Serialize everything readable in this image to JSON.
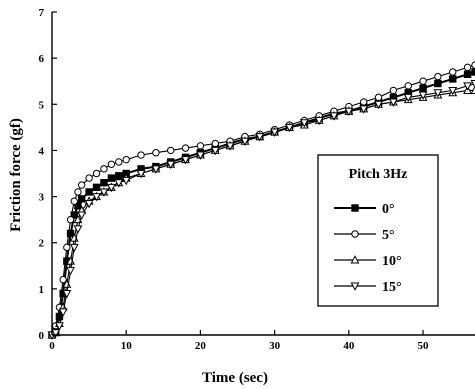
{
  "chart_data": {
    "type": "line",
    "title": "",
    "xlabel": "Time (sec)",
    "ylabel": "Friction force (gf)",
    "xlim": [
      0,
      57
    ],
    "ylim": [
      0,
      7
    ],
    "xticks": [
      0,
      10,
      20,
      30,
      40,
      50
    ],
    "yticks": [
      0,
      1,
      2,
      3,
      4,
      5,
      6,
      7
    ],
    "grid": false,
    "legend": {
      "title": "Pitch 3Hz",
      "placement": "center-right"
    },
    "series": [
      {
        "name": "0°",
        "marker": "filled-square",
        "x": [
          0,
          0.5,
          1,
          1.5,
          2,
          2.5,
          3,
          3.5,
          4,
          5,
          6,
          7,
          8,
          9,
          10,
          12,
          14,
          16,
          18,
          20,
          22,
          24,
          26,
          28,
          30,
          32,
          34,
          36,
          38,
          40,
          42,
          44,
          46,
          48,
          50,
          52,
          54,
          56,
          57
        ],
        "y": [
          0,
          0.1,
          0.4,
          0.9,
          1.6,
          2.2,
          2.6,
          2.8,
          2.95,
          3.1,
          3.2,
          3.3,
          3.4,
          3.45,
          3.5,
          3.6,
          3.65,
          3.75,
          3.85,
          3.95,
          4.05,
          4.15,
          4.25,
          4.3,
          4.4,
          4.5,
          4.6,
          4.7,
          4.8,
          4.85,
          4.95,
          5.05,
          5.15,
          5.25,
          5.35,
          5.45,
          5.55,
          5.65,
          5.7
        ]
      },
      {
        "name": "5°",
        "marker": "open-circle",
        "x": [
          0,
          0.5,
          1,
          1.5,
          2,
          2.5,
          3,
          3.5,
          4,
          5,
          6,
          7,
          8,
          9,
          10,
          12,
          14,
          16,
          18,
          20,
          22,
          24,
          26,
          28,
          30,
          32,
          34,
          36,
          38,
          40,
          42,
          44,
          46,
          48,
          50,
          52,
          54,
          56,
          57
        ],
        "y": [
          0,
          0.2,
          0.6,
          1.2,
          1.9,
          2.5,
          2.9,
          3.1,
          3.25,
          3.4,
          3.5,
          3.6,
          3.7,
          3.75,
          3.8,
          3.9,
          3.95,
          4.0,
          4.05,
          4.1,
          4.15,
          4.2,
          4.3,
          4.35,
          4.45,
          4.55,
          4.65,
          4.75,
          4.85,
          4.95,
          5.05,
          5.15,
          5.3,
          5.4,
          5.5,
          5.6,
          5.7,
          5.8,
          5.85
        ]
      },
      {
        "name": "10°",
        "marker": "open-triangle-up",
        "x": [
          0,
          0.5,
          1,
          1.5,
          2,
          2.5,
          3,
          3.5,
          4,
          5,
          6,
          7,
          8,
          9,
          10,
          12,
          14,
          16,
          18,
          20,
          22,
          24,
          26,
          28,
          30,
          32,
          34,
          36,
          38,
          40,
          42,
          44,
          46,
          48,
          50,
          52,
          54,
          56,
          57
        ],
        "y": [
          0,
          0.05,
          0.25,
          0.6,
          1.1,
          1.6,
          2.1,
          2.5,
          2.7,
          2.9,
          3.0,
          3.1,
          3.2,
          3.3,
          3.4,
          3.5,
          3.6,
          3.7,
          3.8,
          3.9,
          4.0,
          4.1,
          4.2,
          4.3,
          4.4,
          4.5,
          4.55,
          4.65,
          4.75,
          4.85,
          4.9,
          5.0,
          5.05,
          5.1,
          5.15,
          5.2,
          5.25,
          5.3,
          5.3
        ]
      },
      {
        "name": "15°",
        "marker": "open-triangle-down",
        "x": [
          0,
          0.5,
          1,
          1.5,
          2,
          2.5,
          3,
          3.5,
          4,
          5,
          6,
          7,
          8,
          9,
          10,
          12,
          14,
          16,
          18,
          20,
          22,
          24,
          26,
          28,
          30,
          32,
          34,
          36,
          38,
          40,
          42,
          44,
          46,
          48,
          50,
          52,
          54,
          56,
          57
        ],
        "y": [
          0,
          0.05,
          0.2,
          0.5,
          0.9,
          1.4,
          1.9,
          2.3,
          2.6,
          2.85,
          3.0,
          3.1,
          3.2,
          3.3,
          3.35,
          3.5,
          3.6,
          3.7,
          3.8,
          3.9,
          4.0,
          4.1,
          4.2,
          4.3,
          4.4,
          4.5,
          4.6,
          4.65,
          4.75,
          4.85,
          4.9,
          5.0,
          5.05,
          5.15,
          5.2,
          5.25,
          5.3,
          5.4,
          5.45
        ]
      }
    ]
  }
}
